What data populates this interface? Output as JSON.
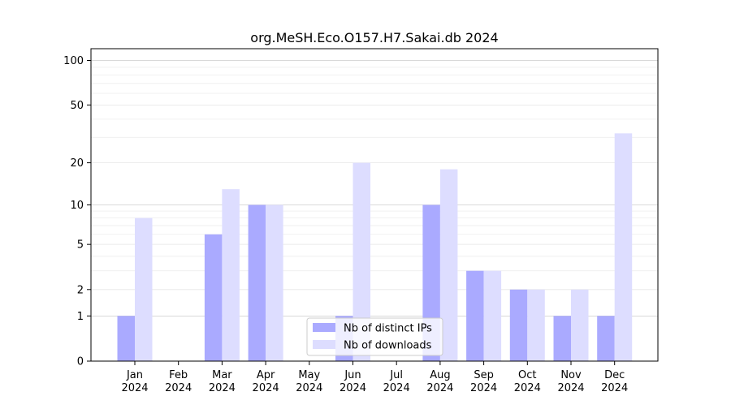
{
  "chart_data": {
    "type": "bar",
    "title": "org.MeSH.Eco.O157.H7.Sakai.db 2024",
    "xlabel": "",
    "ylabel": "",
    "y_scale": "log(1+y)",
    "y_ticks": [
      0,
      1,
      2,
      5,
      10,
      20,
      50,
      100
    ],
    "y_tick_labels": [
      "0",
      "1",
      "2",
      "5",
      "10",
      "20",
      "50",
      "100"
    ],
    "ylim": [
      0,
      120
    ],
    "categories": [
      {
        "month": "Jan",
        "year": "2024"
      },
      {
        "month": "Feb",
        "year": "2024"
      },
      {
        "month": "Mar",
        "year": "2024"
      },
      {
        "month": "Apr",
        "year": "2024"
      },
      {
        "month": "May",
        "year": "2024"
      },
      {
        "month": "Jun",
        "year": "2024"
      },
      {
        "month": "Jul",
        "year": "2024"
      },
      {
        "month": "Aug",
        "year": "2024"
      },
      {
        "month": "Sep",
        "year": "2024"
      },
      {
        "month": "Oct",
        "year": "2024"
      },
      {
        "month": "Nov",
        "year": "2024"
      },
      {
        "month": "Dec",
        "year": "2024"
      }
    ],
    "series": [
      {
        "name": "Nb of distinct IPs",
        "color": "#aaaaff",
        "values": [
          1,
          0,
          6,
          10,
          0,
          1,
          0,
          10,
          3,
          2,
          1,
          1
        ]
      },
      {
        "name": "Nb of downloads",
        "color": "#ddddff",
        "values": [
          8,
          0,
          13,
          10,
          0,
          20,
          0,
          18,
          3,
          2,
          2,
          32
        ]
      }
    ],
    "legend_position": "bottom-center",
    "grid": true
  }
}
